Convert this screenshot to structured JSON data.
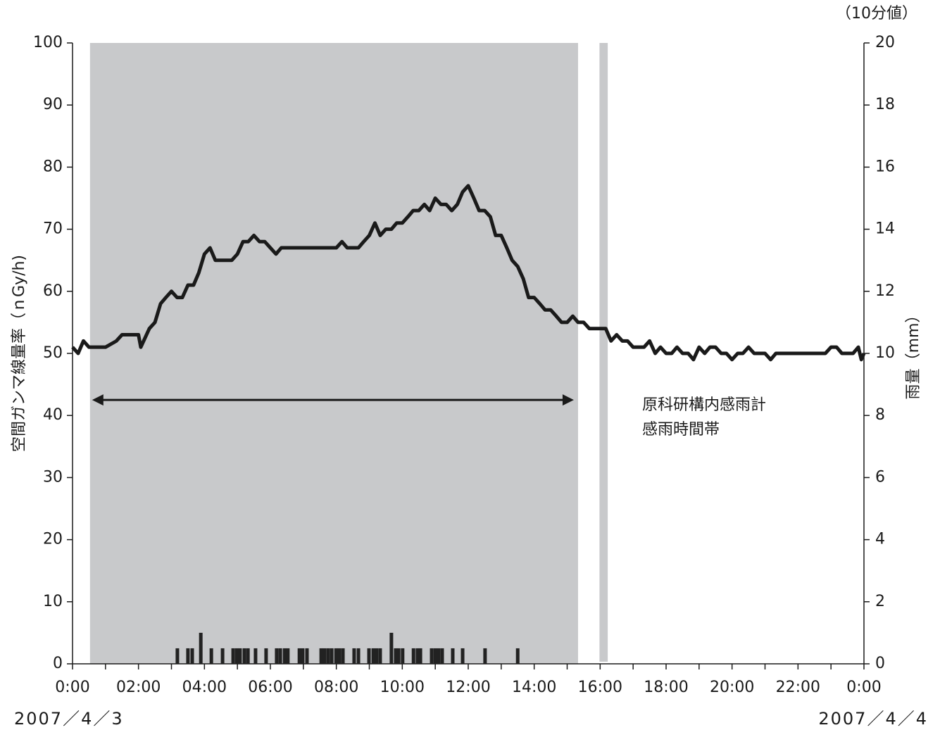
{
  "chart_data": {
    "type": "line",
    "y_label": "空間ガンマ線量率（ｎGy/h)",
    "y2_label": "雨量（mm）",
    "unit_note": "（10分値）",
    "date_start": "2007／4／3",
    "date_end": "2007／4／4",
    "annotation": [
      "原科研構内感雨計",
      "感雨時間帯"
    ],
    "shaded_periods": [
      [
        0.53,
        15.33
      ],
      [
        15.98,
        16.23
      ]
    ],
    "shade_color": "#c8c9cb",
    "xlim": [
      0,
      24
    ],
    "xticks": [
      {
        "value": 0,
        "label": "0:00"
      },
      {
        "value": 2,
        "label": "02:00"
      },
      {
        "value": 4,
        "label": "04:00"
      },
      {
        "value": 6,
        "label": "06:00"
      },
      {
        "value": 8,
        "label": "08:00"
      },
      {
        "value": 10,
        "label": "10:00"
      },
      {
        "value": 12,
        "label": "12:00"
      },
      {
        "value": 14,
        "label": "14:00"
      },
      {
        "value": 16,
        "label": "16:00"
      },
      {
        "value": 18,
        "label": "18:00"
      },
      {
        "value": 20,
        "label": "20:00"
      },
      {
        "value": 22,
        "label": "22:00"
      },
      {
        "value": 24,
        "label": "0:00"
      }
    ],
    "xminorticks": [
      1,
      3,
      5,
      7,
      9,
      11,
      13,
      15,
      17,
      19,
      21,
      23
    ],
    "ylim": [
      0,
      100
    ],
    "yticks": [
      0,
      10,
      20,
      30,
      40,
      50,
      60,
      70,
      80,
      90,
      100
    ],
    "y2lim": [
      0,
      20
    ],
    "y2ticks": [
      0,
      2,
      4,
      6,
      8,
      10,
      12,
      14,
      16,
      18,
      20
    ],
    "series": [
      {
        "type": "line",
        "color": "#1a1a1a",
        "x": [
          0,
          0.17,
          0.33,
          0.5,
          0.67,
          1.0,
          1.33,
          1.5,
          1.83,
          2.0,
          2.07,
          2.33,
          2.5,
          2.67,
          2.83,
          3.0,
          3.17,
          3.33,
          3.5,
          3.67,
          3.83,
          4.0,
          4.17,
          4.33,
          4.83,
          5.0,
          5.17,
          5.33,
          5.5,
          5.67,
          5.83,
          6.17,
          6.33,
          8.0,
          8.17,
          8.33,
          8.67,
          8.83,
          9.0,
          9.17,
          9.33,
          9.5,
          9.67,
          9.83,
          10.0,
          10.17,
          10.33,
          10.5,
          10.67,
          10.83,
          11.0,
          11.17,
          11.33,
          11.5,
          11.67,
          11.83,
          12.0,
          12.17,
          12.33,
          12.5,
          12.67,
          12.83,
          13.0,
          13.17,
          13.33,
          13.5,
          13.67,
          13.83,
          14.0,
          14.17,
          14.33,
          14.5,
          14.67,
          14.83,
          15.0,
          15.17,
          15.33,
          15.5,
          15.67,
          16.0,
          16.17,
          16.33,
          16.5,
          16.67,
          16.83,
          17.0,
          17.33,
          17.5,
          17.67,
          17.83,
          18.0,
          18.17,
          18.33,
          18.5,
          18.67,
          18.83,
          19.0,
          19.17,
          19.33,
          19.5,
          19.67,
          19.83,
          20.0,
          20.17,
          20.33,
          20.5,
          20.67,
          21.0,
          21.17,
          21.33,
          22.83,
          23.0,
          23.17,
          23.33,
          23.67,
          23.83,
          23.92,
          24.0
        ],
        "values": [
          51,
          50,
          52,
          51,
          51,
          51,
          52,
          53,
          53,
          53,
          51,
          54,
          55,
          58,
          59,
          60,
          59,
          59,
          61,
          61,
          63,
          66,
          67,
          65,
          65,
          66,
          68,
          68,
          69,
          68,
          68,
          66,
          67,
          67,
          68,
          67,
          67,
          68,
          69,
          71,
          69,
          70,
          70,
          71,
          71,
          72,
          73,
          73,
          74,
          73,
          75,
          74,
          74,
          73,
          74,
          76,
          77,
          75,
          73,
          73,
          72,
          69,
          69,
          67,
          65,
          64,
          62,
          59,
          59,
          58,
          57,
          57,
          56,
          55,
          55,
          56,
          55,
          55,
          54,
          54,
          54,
          52,
          53,
          52,
          52,
          51,
          51,
          52,
          50,
          51,
          50,
          50,
          51,
          50,
          50,
          49,
          51,
          50,
          51,
          51,
          50,
          50,
          49,
          50,
          50,
          51,
          50,
          50,
          49,
          50,
          50,
          51,
          51,
          50,
          50,
          51,
          49,
          50
        ]
      },
      {
        "type": "bar",
        "axis": "y2",
        "color": "#222222",
        "x": [
          3.18,
          3.5,
          3.63,
          3.89,
          4.21,
          4.55,
          4.87,
          4.98,
          5.08,
          5.21,
          5.32,
          5.55,
          5.87,
          6.19,
          6.3,
          6.43,
          6.53,
          6.88,
          6.98,
          7.11,
          7.54,
          7.64,
          7.75,
          7.86,
          7.99,
          8.09,
          8.2,
          8.54,
          8.67,
          8.99,
          9.12,
          9.22,
          9.33,
          9.67,
          9.8,
          9.89,
          10.01,
          10.34,
          10.46,
          10.55,
          10.89,
          11.0,
          11.1,
          11.21,
          11.53,
          11.83,
          12.51,
          13.5
        ],
        "values": [
          0.5,
          0.5,
          0.5,
          1.0,
          0.5,
          0.5,
          0.5,
          0.5,
          0.5,
          0.5,
          0.5,
          0.5,
          0.5,
          0.5,
          0.5,
          0.5,
          0.5,
          0.5,
          0.5,
          0.5,
          0.5,
          0.5,
          0.5,
          0.5,
          0.5,
          0.5,
          0.5,
          0.5,
          0.5,
          0.5,
          0.5,
          0.5,
          0.5,
          1.0,
          0.5,
          0.5,
          0.5,
          0.5,
          0.5,
          0.5,
          0.5,
          0.5,
          0.5,
          0.5,
          0.5,
          0.5,
          0.5,
          0.5
        ]
      }
    ]
  }
}
